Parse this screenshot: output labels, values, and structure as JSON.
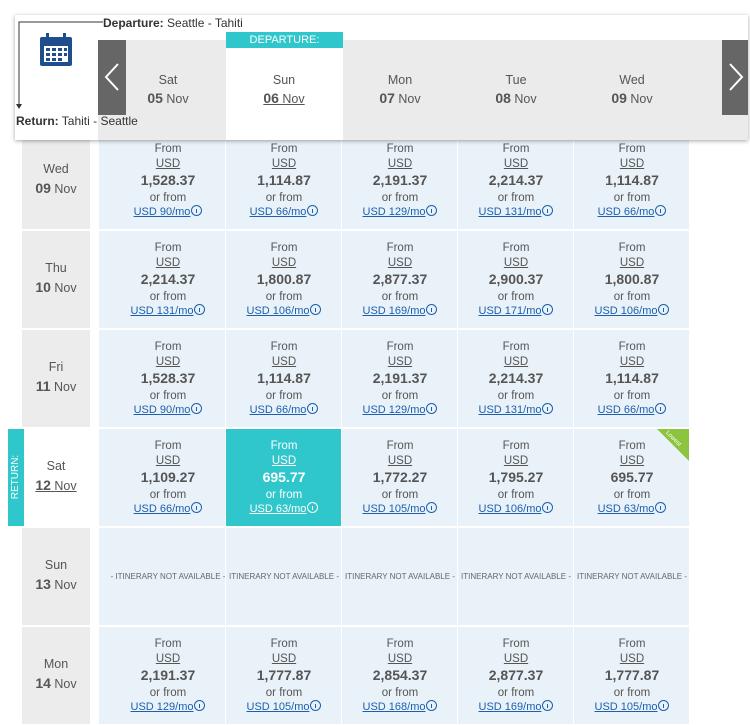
{
  "header": {
    "departure_label": "Departure:",
    "departure_route": "Seattle - Tahiti",
    "return_label": "Return:",
    "return_route": "Tahiti - Seattle",
    "departure_badge": "DEPARTURE:",
    "return_badge": "RETURN:"
  },
  "labels": {
    "from": "From",
    "currency": "USD",
    "or_from": "or from",
    "lowest": "Lowest"
  },
  "columns": [
    {
      "day": "Sat",
      "date": "05",
      "month": "Nov"
    },
    {
      "day": "Sun",
      "date": "06",
      "month": "Nov"
    },
    {
      "day": "Mon",
      "date": "07",
      "month": "Nov"
    },
    {
      "day": "Tue",
      "date": "08",
      "month": "Nov"
    },
    {
      "day": "Wed",
      "date": "09",
      "month": "Nov"
    }
  ],
  "rows": [
    {
      "day": "Wed",
      "date": "09",
      "month": "Nov",
      "cells": [
        {
          "price": "1,528.37",
          "monthly": "USD 90/mo"
        },
        {
          "price": "1,114.87",
          "monthly": "USD 66/mo"
        },
        {
          "price": "2,191.37",
          "monthly": "USD 129/mo"
        },
        {
          "price": "2,214.37",
          "monthly": "USD 131/mo"
        },
        {
          "price": "1,114.87",
          "monthly": "USD 66/mo"
        }
      ]
    },
    {
      "day": "Thu",
      "date": "10",
      "month": "Nov",
      "cells": [
        {
          "price": "2,214.37",
          "monthly": "USD 131/mo"
        },
        {
          "price": "1,800.87",
          "monthly": "USD 106/mo"
        },
        {
          "price": "2,877.37",
          "monthly": "USD 169/mo"
        },
        {
          "price": "2,900.37",
          "monthly": "USD 171/mo"
        },
        {
          "price": "1,800.87",
          "monthly": "USD 106/mo"
        }
      ]
    },
    {
      "day": "Fri",
      "date": "11",
      "month": "Nov",
      "cells": [
        {
          "price": "1,528.37",
          "monthly": "USD 90/mo"
        },
        {
          "price": "1,114.87",
          "monthly": "USD 66/mo"
        },
        {
          "price": "2,191.37",
          "monthly": "USD 129/mo"
        },
        {
          "price": "2,214.37",
          "monthly": "USD 131/mo"
        },
        {
          "price": "1,114.87",
          "monthly": "USD 66/mo"
        }
      ]
    },
    {
      "day": "Sat",
      "date": "12",
      "month": "Nov",
      "cells": [
        {
          "price": "1,109.27",
          "monthly": "USD 66/mo"
        },
        {
          "price": "695.77",
          "monthly": "USD 63/mo"
        },
        {
          "price": "1,772.27",
          "monthly": "USD 105/mo"
        },
        {
          "price": "1,795.27",
          "monthly": "USD 106/mo"
        },
        {
          "price": "695.77",
          "monthly": "USD 63/mo"
        }
      ]
    },
    {
      "day": "Sun",
      "date": "13",
      "month": "Nov",
      "cells": [
        {
          "unavailable": "- ITINERARY NOT AVAILABLE -"
        },
        {
          "unavailable": "ITINERARY NOT AVAILABLE -"
        },
        {
          "unavailable": "ITINERARY NOT AVAILABLE -"
        },
        {
          "unavailable": "ITINERARY NOT AVAILABLE -"
        },
        {
          "unavailable": "ITINERARY NOT AVAILABLE -"
        }
      ]
    },
    {
      "day": "Mon",
      "date": "14",
      "month": "Nov",
      "cells": [
        {
          "price": "2,191.37",
          "monthly": "USD 129/mo"
        },
        {
          "price": "1,777.87",
          "monthly": "USD 105/mo"
        },
        {
          "price": "2,854.37",
          "monthly": "USD 168/mo"
        },
        {
          "price": "2,877.37",
          "monthly": "USD 169/mo"
        },
        {
          "price": "1,777.87",
          "monthly": "USD 105/mo"
        }
      ]
    }
  ]
}
